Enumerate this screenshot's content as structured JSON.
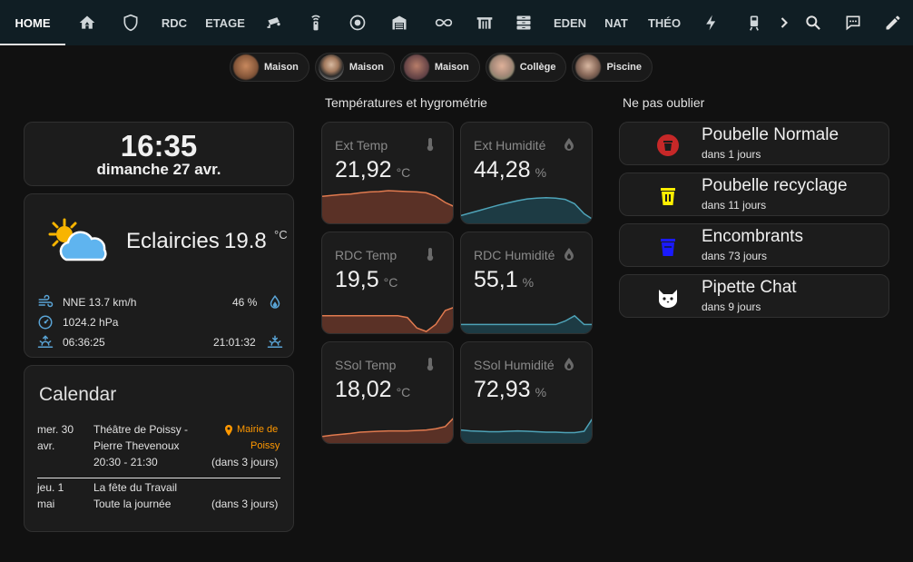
{
  "nav": {
    "tabs": [
      {
        "label": "HOME",
        "active": true
      },
      {
        "icon": "house-icon"
      },
      {
        "icon": "shield-icon"
      },
      {
        "label": "RDC"
      },
      {
        "label": "ETAGE"
      },
      {
        "icon": "cctv-icon"
      },
      {
        "icon": "remote-icon"
      },
      {
        "icon": "robot-vacuum-icon"
      },
      {
        "icon": "garage-icon"
      },
      {
        "icon": "infinity-icon"
      },
      {
        "icon": "gate-icon"
      },
      {
        "icon": "dresser-icon"
      },
      {
        "label": "EDEN"
      },
      {
        "label": "NAT"
      },
      {
        "label": "THÉO"
      },
      {
        "icon": "lightning-icon"
      },
      {
        "icon": "train-icon"
      }
    ]
  },
  "people": [
    {
      "name": "Maison"
    },
    {
      "name": "Maison"
    },
    {
      "name": "Maison"
    },
    {
      "name": "Collège"
    },
    {
      "name": "Piscine"
    }
  ],
  "clock": {
    "time": "16:35",
    "date": "dimanche 27 avr."
  },
  "weather": {
    "condition": "Eclaircies",
    "temperature": "19.8",
    "unit": "°C",
    "wind": "NNE 13.7 km/h",
    "humidity": "46 %",
    "pressure": "1024.2 hPa",
    "sunrise": "06:36:25",
    "sunset": "21:01:32"
  },
  "calendar": {
    "title": "Calendar",
    "events": [
      {
        "day": "mer. 30",
        "month": "avr.",
        "title1": "Théâtre de Poissy -",
        "title2": "Pierre Thevenoux",
        "time": "20:30 - 21:30",
        "location1": "Mairie de",
        "location2": "Poissy",
        "relative": "(dans 3 jours)"
      },
      {
        "day": "jeu. 1",
        "month": "mai",
        "title1": "La fête du Travail",
        "time": "Toute la journée",
        "relative": "(dans 3 jours)"
      }
    ]
  },
  "sensors_title": "Températures et hygrométrie",
  "sensors": [
    {
      "name": "Ext Temp",
      "value": "21,92",
      "unit": "°C",
      "icon": "thermometer-icon",
      "color": "#e07a4f",
      "fill": "#5a3126",
      "values": [
        0.62,
        0.64,
        0.66,
        0.67,
        0.7,
        0.72,
        0.73,
        0.75,
        0.74,
        0.73,
        0.72,
        0.7,
        0.62,
        0.48,
        0.38
      ]
    },
    {
      "name": "Ext Humidité",
      "value": "44,28",
      "unit": "%",
      "icon": "water-drop-icon",
      "color": "#4ea3b8",
      "fill": "#1d3b44",
      "values": [
        0.18,
        0.24,
        0.3,
        0.36,
        0.42,
        0.47,
        0.52,
        0.56,
        0.58,
        0.59,
        0.58,
        0.55,
        0.45,
        0.22,
        0.08
      ]
    },
    {
      "name": "RDC Temp",
      "value": "19,5",
      "unit": "°C",
      "icon": "thermometer-icon",
      "color": "#e07a4f",
      "fill": "#5a3126",
      "values": [
        0.4,
        0.4,
        0.4,
        0.4,
        0.4,
        0.4,
        0.4,
        0.4,
        0.4,
        0.36,
        0.12,
        0.04,
        0.2,
        0.52,
        0.6
      ]
    },
    {
      "name": "RDC Humidité",
      "value": "55,1",
      "unit": "%",
      "icon": "water-drop-icon",
      "color": "#4ea3b8",
      "fill": "#1d3b44",
      "values": [
        0.2,
        0.2,
        0.2,
        0.2,
        0.2,
        0.2,
        0.2,
        0.2,
        0.2,
        0.2,
        0.2,
        0.28,
        0.4,
        0.2,
        0.2
      ]
    },
    {
      "name": "SSol Temp",
      "value": "18,02",
      "unit": "°C",
      "icon": "thermometer-icon",
      "color": "#e07a4f",
      "fill": "#5a3126",
      "values": [
        0.15,
        0.18,
        0.2,
        0.22,
        0.25,
        0.26,
        0.27,
        0.28,
        0.28,
        0.28,
        0.29,
        0.3,
        0.33,
        0.38,
        0.6
      ]
    },
    {
      "name": "SSol Humidité",
      "value": "72,93",
      "unit": "%",
      "icon": "water-drop-icon",
      "color": "#4ea3b8",
      "fill": "#1d3b44",
      "values": [
        0.3,
        0.28,
        0.27,
        0.26,
        0.26,
        0.27,
        0.28,
        0.27,
        0.26,
        0.25,
        0.25,
        0.24,
        0.24,
        0.27,
        0.6
      ]
    }
  ],
  "todo_title": "Ne pas oublier",
  "todos": [
    {
      "title": "Poubelle Normale",
      "due": "dans 1 jours",
      "icon": "trash-can-icon",
      "color": "#c62828"
    },
    {
      "title": "Poubelle recyclage",
      "due": "dans 11 jours",
      "icon": "recycle-bin-icon",
      "color": "#ffee00"
    },
    {
      "title": "Encombrants",
      "due": "dans 73 jours",
      "icon": "trash-bin-icon",
      "color": "#1a1aff"
    },
    {
      "title": "Pipette Chat",
      "due": "dans 9 jours",
      "icon": "cat-icon",
      "color": "#ffffff"
    }
  ]
}
